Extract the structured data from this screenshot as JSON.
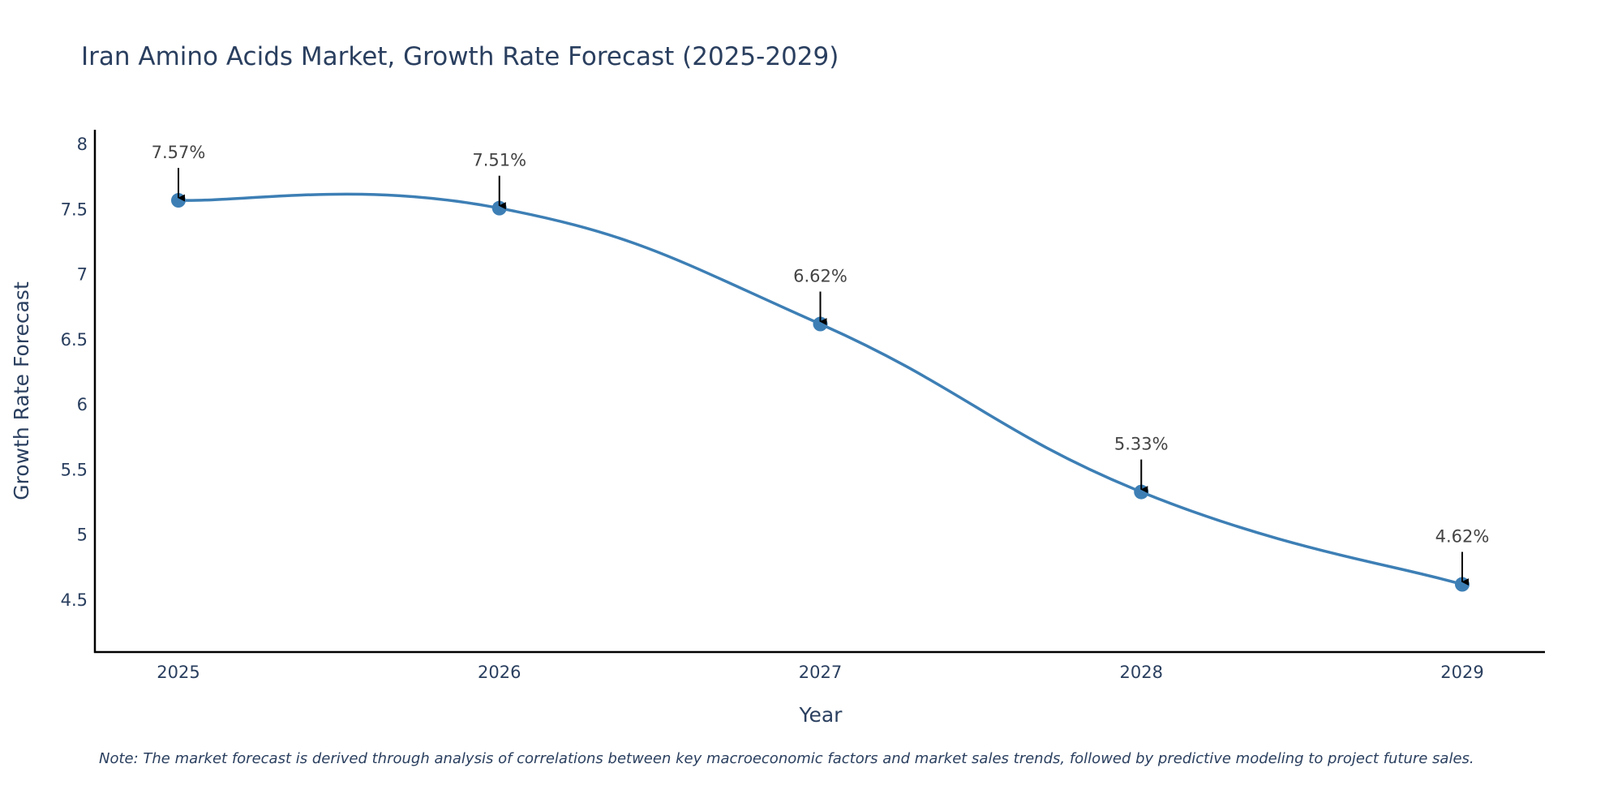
{
  "chart_data": {
    "type": "line",
    "title": "Iran Amino Acids Market, Growth Rate Forecast (2025-2029)",
    "xlabel": "Year",
    "ylabel": "Growth Rate Forecast",
    "categories": [
      "2025",
      "2026",
      "2027",
      "2028",
      "2029"
    ],
    "values": [
      7.57,
      7.51,
      6.62,
      5.33,
      4.62
    ],
    "data_labels": [
      "7.57%",
      "7.51%",
      "6.62%",
      "5.33%",
      "4.62%"
    ],
    "ylim": [
      4.1,
      8.05
    ],
    "yticks": [
      4.5,
      5,
      5.5,
      6,
      6.5,
      7,
      7.5,
      8
    ],
    "ytick_labels": [
      "4.5",
      "5",
      "5.5",
      "6",
      "6.5",
      "7",
      "7.5",
      "8"
    ],
    "grid": false,
    "line_color": "#3d7fb5",
    "marker_color": "#3d7fb5",
    "arrow_color": "#000000",
    "axis_color": "#000000",
    "note": "Note: The market forecast is derived through analysis of correlations between key macroeconomic factors and market sales trends, followed by predictive modeling to project future sales."
  }
}
